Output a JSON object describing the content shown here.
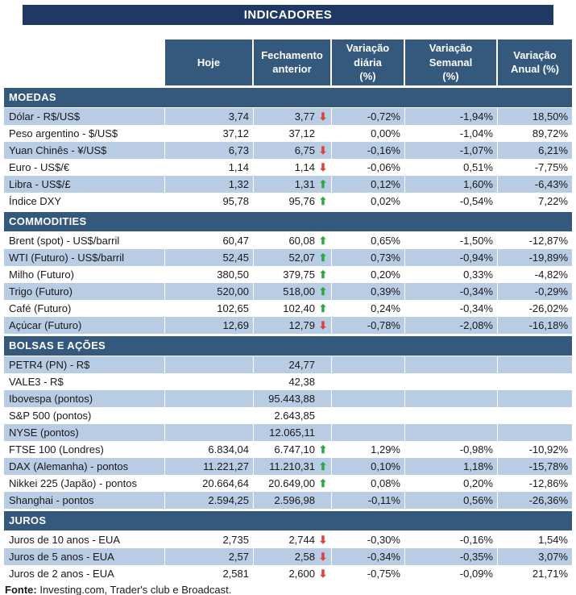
{
  "title": "INDICADORES",
  "chart_data": {
    "type": "table",
    "title": "INDICADORES",
    "columns": [
      "Hoje",
      "Fechamento\nanterior",
      "Variação diária\n(%)",
      "Variação Semanal\n(%)",
      "Variação\nAnual (%)"
    ],
    "sections": [
      {
        "name": "MOEDAS",
        "rows": [
          {
            "label": "Dólar - R$/US$",
            "hoje": "3,74",
            "fechamento": "3,77",
            "arrow": "down",
            "var_diaria": "-0,72%",
            "var_semanal": "-1,94%",
            "var_anual": "18,50%",
            "shaded": true
          },
          {
            "label": "Peso argentino - $/US$",
            "hoje": "37,12",
            "fechamento": "37,12",
            "arrow": "",
            "var_diaria": "0,00%",
            "var_semanal": "-1,04%",
            "var_anual": "89,72%",
            "shaded": false
          },
          {
            "label": "Yuan Chinês - ¥/US$",
            "hoje": "6,73",
            "fechamento": "6,75",
            "arrow": "down",
            "var_diaria": "-0,16%",
            "var_semanal": "-1,07%",
            "var_anual": "6,21%",
            "shaded": true
          },
          {
            "label": "Euro - US$/€",
            "hoje": "1,14",
            "fechamento": "1,14",
            "arrow": "down",
            "var_diaria": "-0,06%",
            "var_semanal": "0,51%",
            "var_anual": "-7,75%",
            "shaded": false
          },
          {
            "label": "Libra - US$/£",
            "hoje": "1,32",
            "fechamento": "1,31",
            "arrow": "up",
            "var_diaria": "0,12%",
            "var_semanal": "1,60%",
            "var_anual": "-6,43%",
            "shaded": true
          },
          {
            "label": "Índice DXY",
            "hoje": "95,78",
            "fechamento": "95,76",
            "arrow": "up",
            "var_diaria": "0,02%",
            "var_semanal": "-0,54%",
            "var_anual": "7,22%",
            "shaded": false
          }
        ]
      },
      {
        "name": "COMMODITIES",
        "rows": [
          {
            "label": "Brent (spot) - US$/barril",
            "hoje": "60,47",
            "fechamento": "60,08",
            "arrow": "up",
            "var_diaria": "0,65%",
            "var_semanal": "-1,50%",
            "var_anual": "-12,87%",
            "shaded": false
          },
          {
            "label": "WTI (Futuro) - US$/barril",
            "hoje": "52,45",
            "fechamento": "52,07",
            "arrow": "up",
            "var_diaria": "0,73%",
            "var_semanal": "-0,94%",
            "var_anual": "-19,89%",
            "shaded": true
          },
          {
            "label": "Milho (Futuro)",
            "hoje": "380,50",
            "fechamento": "379,75",
            "arrow": "up",
            "var_diaria": "0,20%",
            "var_semanal": "0,33%",
            "var_anual": "-4,82%",
            "shaded": false
          },
          {
            "label": "Trigo (Futuro)",
            "hoje": "520,00",
            "fechamento": "518,00",
            "arrow": "up",
            "var_diaria": "0,39%",
            "var_semanal": "-0,34%",
            "var_anual": "-0,29%",
            "shaded": true
          },
          {
            "label": "Café (Futuro)",
            "hoje": "102,65",
            "fechamento": "102,40",
            "arrow": "up",
            "var_diaria": "0,24%",
            "var_semanal": "-0,34%",
            "var_anual": "-26,02%",
            "shaded": false
          },
          {
            "label": "Açúcar (Futuro)",
            "hoje": "12,69",
            "fechamento": "12,79",
            "arrow": "down",
            "var_diaria": "-0,78%",
            "var_semanal": "-2,08%",
            "var_anual": "-16,18%",
            "shaded": true
          }
        ]
      },
      {
        "name": "BOLSAS E AÇÕES",
        "rows": [
          {
            "label": "PETR4 (PN) - R$",
            "hoje": "",
            "fechamento": "24,77",
            "arrow": "",
            "var_diaria": "",
            "var_semanal": "",
            "var_anual": "",
            "shaded": true
          },
          {
            "label": "VALE3 - R$",
            "hoje": "",
            "fechamento": "42,38",
            "arrow": "",
            "var_diaria": "",
            "var_semanal": "",
            "var_anual": "",
            "shaded": false
          },
          {
            "label": "Ibovespa (pontos)",
            "hoje": "",
            "fechamento": "95.443,88",
            "arrow": "",
            "var_diaria": "",
            "var_semanal": "",
            "var_anual": "",
            "shaded": true
          },
          {
            "label": "S&P 500 (pontos)",
            "hoje": "",
            "fechamento": "2.643,85",
            "arrow": "",
            "var_diaria": "",
            "var_semanal": "",
            "var_anual": "",
            "shaded": false
          },
          {
            "label": "NYSE (pontos)",
            "hoje": "",
            "fechamento": "12.065,11",
            "arrow": "",
            "var_diaria": "",
            "var_semanal": "",
            "var_anual": "",
            "shaded": true
          },
          {
            "label": "FTSE 100 (Londres)",
            "hoje": "6.834,04",
            "fechamento": "6.747,10",
            "arrow": "up",
            "var_diaria": "1,29%",
            "var_semanal": "-0,98%",
            "var_anual": "-10,92%",
            "shaded": false
          },
          {
            "label": "DAX (Alemanha) - pontos",
            "hoje": "11.221,27",
            "fechamento": "11.210,31",
            "arrow": "up",
            "var_diaria": "0,10%",
            "var_semanal": "1,18%",
            "var_anual": "-15,78%",
            "shaded": true
          },
          {
            "label": "Nikkei 225 (Japão) - pontos",
            "hoje": "20.664,64",
            "fechamento": "20.649,00",
            "arrow": "up",
            "var_diaria": "0,08%",
            "var_semanal": "0,20%",
            "var_anual": "-12,86%",
            "shaded": false
          },
          {
            "label": "Shanghai - pontos",
            "hoje": "2.594,25",
            "fechamento": "2.596,98",
            "arrow": "",
            "var_diaria": "-0,11%",
            "var_semanal": "0,56%",
            "var_anual": "-26,36%",
            "shaded": true
          }
        ]
      },
      {
        "name": "JUROS",
        "rows": [
          {
            "label": "Juros de 10 anos - EUA",
            "hoje": "2,735",
            "fechamento": "2,744",
            "arrow": "down",
            "var_diaria": "-0,30%",
            "var_semanal": "-0,16%",
            "var_anual": "1,54%",
            "shaded": false
          },
          {
            "label": "Juros de 5 anos - EUA",
            "hoje": "2,57",
            "fechamento": "2,58",
            "arrow": "down",
            "var_diaria": "-0,34%",
            "var_semanal": "-0,35%",
            "var_anual": "3,07%",
            "shaded": true
          },
          {
            "label": "Juros de 2 anos - EUA",
            "hoje": "2,581",
            "fechamento": "2,600",
            "arrow": "down",
            "var_diaria": "-0,75%",
            "var_semanal": "-0,09%",
            "var_anual": "21,71%",
            "shaded": false
          }
        ]
      }
    ]
  },
  "footer": {
    "label": "Fonte:",
    "text": " Investing.com, Trader's club e Broadcast."
  },
  "icons": {
    "up_arrow": "⬆",
    "down_arrow": "⬇"
  },
  "colors": {
    "title_bg": "#1F3864",
    "header_bg": "#35597D",
    "row_shade": "#B8CCE4",
    "up_arrow": "#2EA843",
    "down_arrow": "#D9453B"
  }
}
